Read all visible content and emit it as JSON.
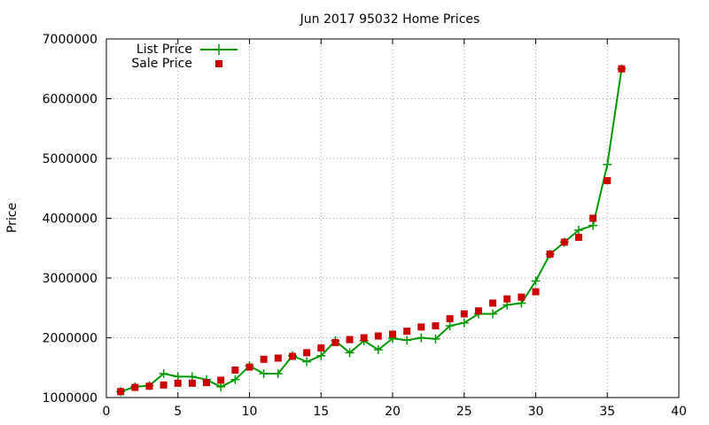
{
  "chart_data": {
    "type": "line",
    "title": "Jun 2017 95032 Home Prices",
    "xlabel": "",
    "ylabel": "Price",
    "xlim": [
      0,
      40
    ],
    "ylim": [
      1000000,
      7000000
    ],
    "x_ticks": [
      0,
      5,
      10,
      15,
      20,
      25,
      30,
      35,
      40
    ],
    "y_ticks": [
      1000000,
      2000000,
      3000000,
      4000000,
      5000000,
      6000000,
      7000000
    ],
    "x_tick_labels": [
      "0",
      "5",
      "10",
      "15",
      "20",
      "25",
      "30",
      "35",
      "40"
    ],
    "y_tick_labels": [
      "1000000",
      "2000000",
      "3000000",
      "4000000",
      "5000000",
      "6000000",
      "7000000"
    ],
    "grid": true,
    "legend_position": "top-left",
    "series": [
      {
        "name": "List Price",
        "style": "line-with-plus",
        "color": "#009900",
        "x": [
          1,
          2,
          3,
          4,
          5,
          6,
          7,
          8,
          9,
          10,
          11,
          12,
          13,
          14,
          15,
          16,
          17,
          18,
          19,
          20,
          21,
          22,
          23,
          24,
          25,
          26,
          27,
          28,
          29,
          30,
          31,
          32,
          33,
          34,
          35,
          36
        ],
        "values": [
          1100000,
          1180000,
          1200000,
          1400000,
          1350000,
          1350000,
          1300000,
          1180000,
          1300000,
          1530000,
          1400000,
          1400000,
          1700000,
          1600000,
          1700000,
          1950000,
          1750000,
          1950000,
          1800000,
          1990000,
          1960000,
          2000000,
          1980000,
          2200000,
          2250000,
          2400000,
          2400000,
          2550000,
          2580000,
          2950000,
          3400000,
          3600000,
          3800000,
          3880000,
          4900000,
          6500000
        ]
      },
      {
        "name": "Sale Price",
        "style": "square-markers",
        "color": "#cc0000",
        "x": [
          1,
          2,
          3,
          4,
          5,
          6,
          7,
          8,
          9,
          10,
          11,
          12,
          13,
          14,
          15,
          16,
          17,
          18,
          19,
          20,
          21,
          22,
          23,
          24,
          25,
          26,
          27,
          28,
          29,
          30,
          31,
          32,
          33,
          34,
          35,
          36
        ],
        "values": [
          1100000,
          1170000,
          1190000,
          1210000,
          1240000,
          1240000,
          1250000,
          1290000,
          1460000,
          1510000,
          1640000,
          1660000,
          1690000,
          1750000,
          1830000,
          1920000,
          1970000,
          2000000,
          2030000,
          2060000,
          2110000,
          2180000,
          2200000,
          2320000,
          2400000,
          2450000,
          2580000,
          2650000,
          2680000,
          2770000,
          3400000,
          3600000,
          3680000,
          4000000,
          4630000,
          6500000
        ]
      }
    ]
  }
}
